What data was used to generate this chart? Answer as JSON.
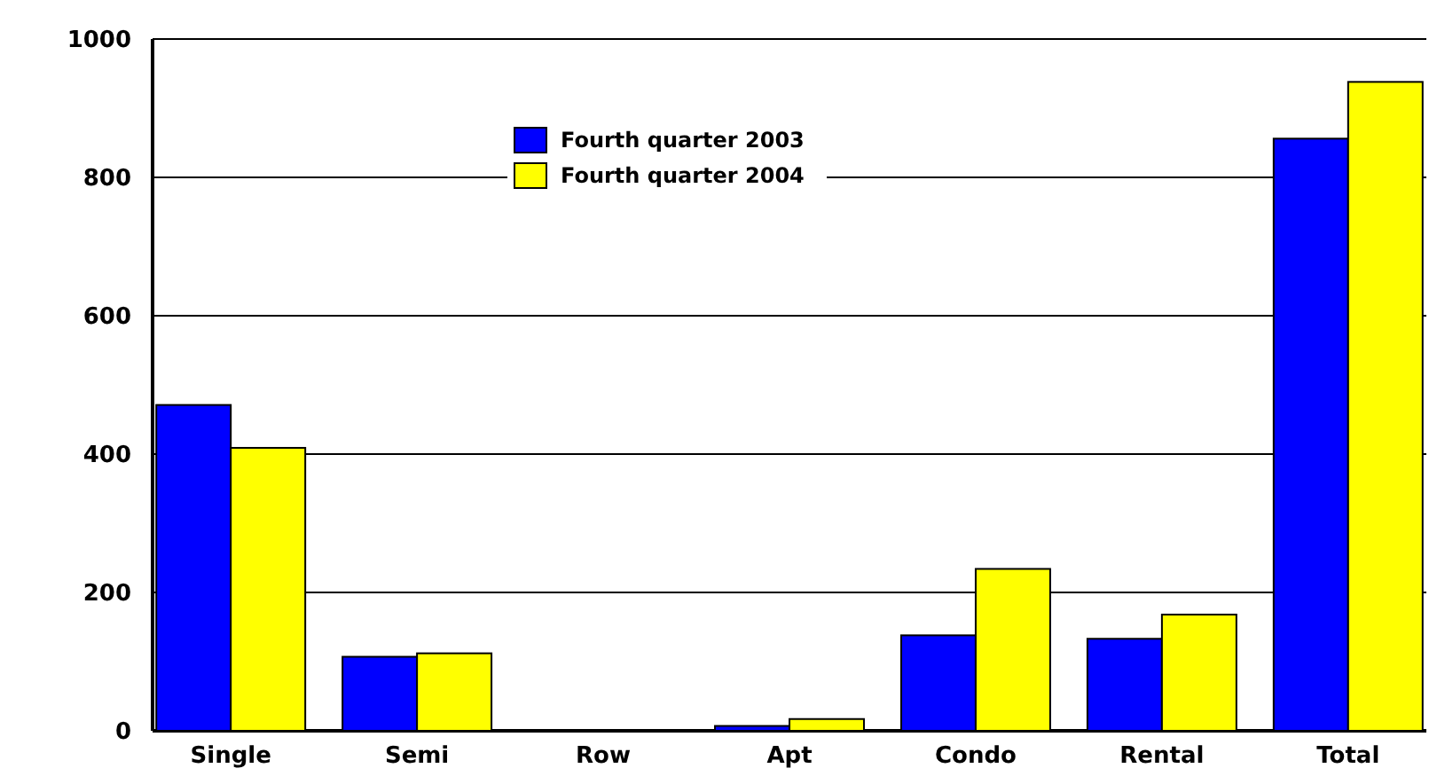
{
  "chart_data": {
    "type": "bar",
    "categories": [
      "Single",
      "Semi",
      "Row",
      "Apt",
      "Condo",
      "Rental",
      "Total"
    ],
    "series": [
      {
        "name": "Fourth quarter 2003",
        "color": "#0000ff",
        "values": [
          471,
          107,
          0,
          7,
          138,
          133,
          856
        ]
      },
      {
        "name": "Fourth quarter 2004",
        "color": "#ffff00",
        "values": [
          409,
          112,
          0,
          17,
          234,
          168,
          938
        ]
      }
    ],
    "ylim": [
      0,
      1000
    ],
    "yticks": [
      0,
      200,
      400,
      600,
      800,
      1000
    ],
    "grid": "y",
    "legend": "top"
  }
}
